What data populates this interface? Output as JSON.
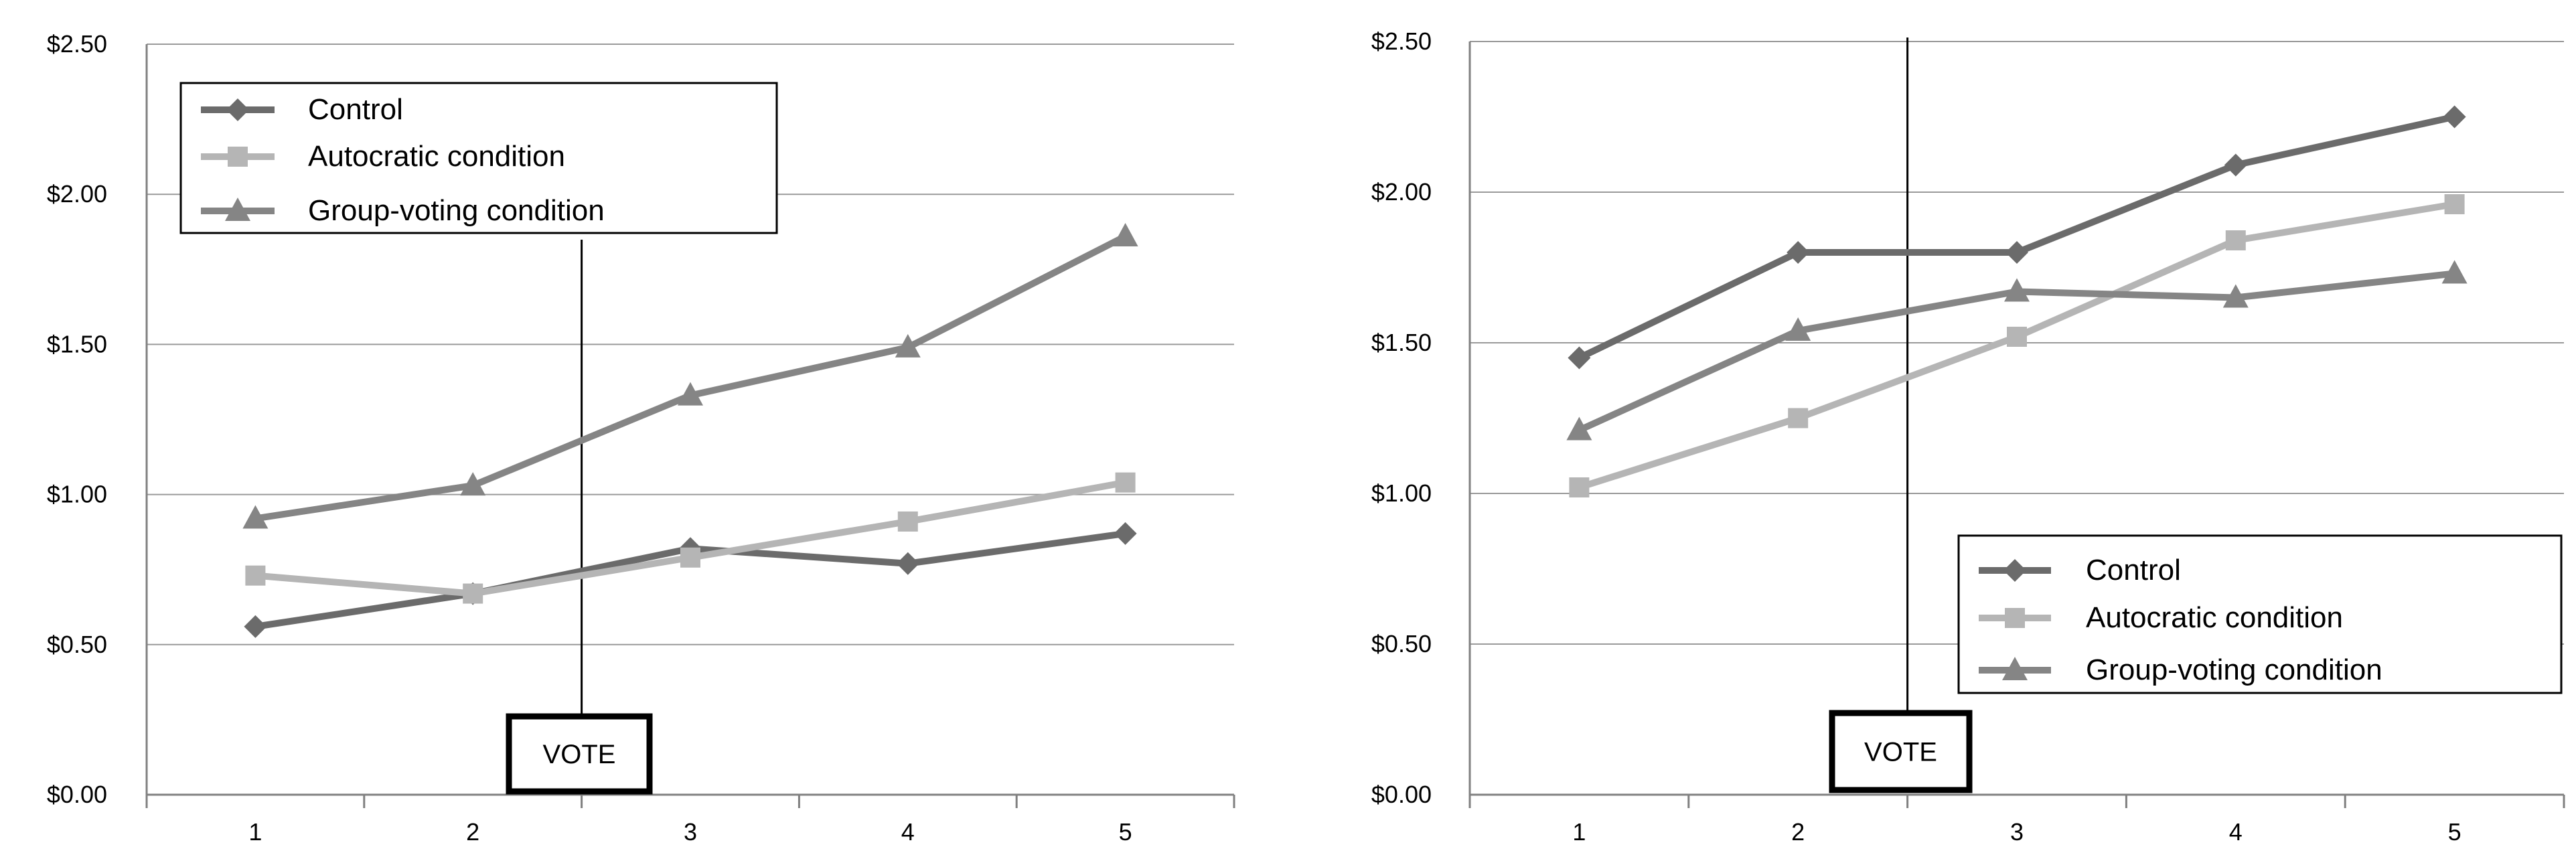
{
  "chart_data": [
    {
      "type": "line",
      "categories": [
        "1",
        "2",
        "3",
        "4",
        "5"
      ],
      "series": [
        {
          "name": "Control",
          "marker": "diamond",
          "color": "#6b6b6b",
          "values": [
            0.56,
            0.67,
            0.82,
            0.77,
            0.87
          ]
        },
        {
          "name": "Autocratic condition",
          "marker": "square",
          "color": "#b5b5b5",
          "values": [
            0.73,
            0.67,
            0.79,
            0.91,
            1.04
          ]
        },
        {
          "name": "Group-voting condition",
          "marker": "triangle",
          "color": "#858585",
          "values": [
            0.92,
            1.03,
            1.33,
            1.49,
            1.86
          ]
        }
      ],
      "ylim": [
        0,
        2.5
      ],
      "yticks": [
        0,
        0.5,
        1.0,
        1.5,
        2.0,
        2.5
      ],
      "ytick_labels": [
        "$0.00",
        "$0.50",
        "$1.00",
        "$1.50",
        "$2.00",
        "$2.50"
      ],
      "grid": "horizontal",
      "legend_position": "top-left",
      "vote_between": [
        2,
        3
      ],
      "annotation": "VOTE"
    },
    {
      "type": "line",
      "categories": [
        "1",
        "2",
        "3",
        "4",
        "5"
      ],
      "series": [
        {
          "name": "Control",
          "marker": "diamond",
          "color": "#6b6b6b",
          "values": [
            1.45,
            1.8,
            1.8,
            2.09,
            2.25
          ]
        },
        {
          "name": "Autocratic condition",
          "marker": "square",
          "color": "#b5b5b5",
          "values": [
            1.02,
            1.25,
            1.52,
            1.84,
            1.96
          ]
        },
        {
          "name": "Group-voting condition",
          "marker": "triangle",
          "color": "#858585",
          "values": [
            1.21,
            1.54,
            1.67,
            1.65,
            1.73
          ]
        }
      ],
      "ylim": [
        0,
        2.5
      ],
      "yticks": [
        0,
        0.5,
        1.0,
        1.5,
        2.0,
        2.5
      ],
      "ytick_labels": [
        "$0.00",
        "$0.50",
        "$1.00",
        "$1.50",
        "$2.00",
        "$2.50"
      ],
      "grid": "horizontal",
      "legend_position": "bottom-right",
      "vote_between": [
        2,
        3
      ],
      "annotation": "VOTE"
    }
  ]
}
